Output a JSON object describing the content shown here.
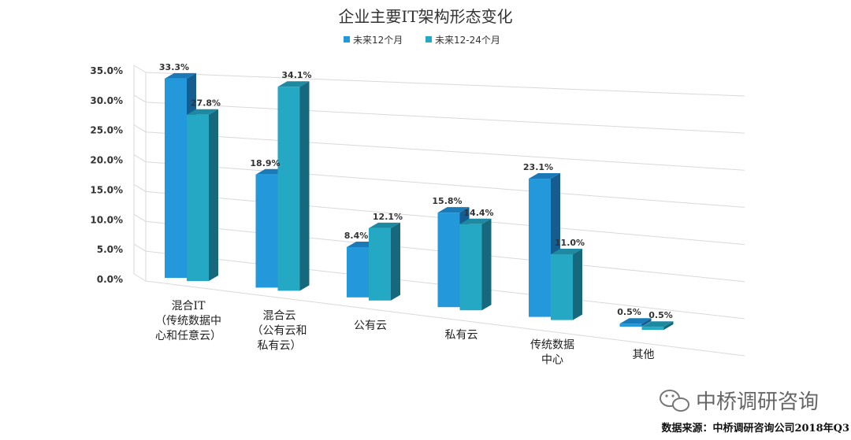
{
  "chart_data": {
    "type": "bar",
    "title": "企业主要IT架构形态变化",
    "categories": [
      [
        "混合IT",
        "（传统数据中",
        "心和任意云）"
      ],
      [
        "混合云",
        "（公有云和",
        "私有云）"
      ],
      [
        "公有云"
      ],
      [
        "私有云"
      ],
      [
        "传统数据",
        "中心"
      ],
      [
        "其他"
      ]
    ],
    "series": [
      {
        "name": "未来12个月",
        "values": [
          33.3,
          18.9,
          8.4,
          15.8,
          23.1,
          0.5
        ],
        "labels": [
          "33.3%",
          "18.9%",
          "8.4%",
          "15.8%",
          "23.1%",
          "0.5%"
        ]
      },
      {
        "name": "未来12-24个月",
        "values": [
          27.8,
          34.1,
          12.1,
          14.4,
          11.0,
          0.5
        ],
        "labels": [
          "27.8%",
          "34.1%",
          "12.1%",
          "14.4%",
          "11.0%",
          "0.5%"
        ]
      }
    ],
    "yticks": [
      "0.0%",
      "5.0%",
      "10.0%",
      "15.0%",
      "20.0%",
      "25.0%",
      "30.0%",
      "35.0%"
    ],
    "ylim": [
      0,
      35
    ],
    "legend_position": "top-center",
    "grid": true,
    "colors": {
      "series1_front": "#2399dc",
      "series1_side": "#155d91",
      "series1_top": "#1a7ab8",
      "series2_front": "#25a8c4",
      "series2_side": "#16697c",
      "series2_top": "#1d8aa2"
    }
  },
  "watermark": "中桥调研咨询",
  "source": "数据来源：中桥调研咨询公司2018年Q3"
}
